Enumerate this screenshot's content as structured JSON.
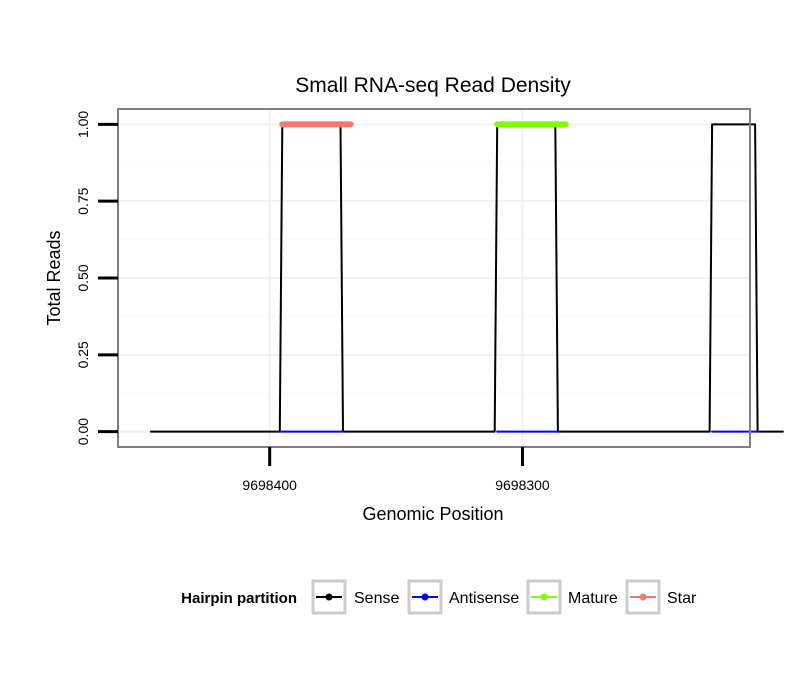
{
  "chart_data": {
    "type": "line",
    "title": "Small RNA-seq Read Density",
    "xlabel": "Genomic Position",
    "ylabel": "Total Reads",
    "x_reversed": true,
    "xlim": [
      9698460,
      9698210
    ],
    "ylim": [
      -0.05,
      1.05
    ],
    "y_ticks": [
      0.0,
      0.25,
      0.5,
      0.75,
      1.0
    ],
    "y_tick_labels": [
      "0.00",
      "0.25",
      "0.50",
      "0.75",
      "1.00"
    ],
    "x_ticks": [
      9698400,
      9698300
    ],
    "x_tick_labels": [
      "9698400",
      "9698300"
    ],
    "grid": true,
    "legend": {
      "title": "Hairpin partition",
      "position": "bottom",
      "entries": [
        "Sense",
        "Antisense",
        "Mature",
        "Star"
      ]
    },
    "series": [
      {
        "name": "Sense",
        "color": "#000000",
        "width": 2,
        "x": [
          9698447,
          9698396,
          9698395,
          9698372,
          9698371,
          9698311,
          9698310,
          9698287,
          9698286,
          9698226,
          9698225,
          9698208,
          9698207,
          9698197
        ],
        "y": [
          0,
          0,
          1,
          1,
          0,
          0,
          1,
          1,
          0,
          0,
          1,
          1,
          0,
          0
        ]
      },
      {
        "name": "Antisense",
        "color": "#0000ff",
        "width": 2,
        "x": [
          9698396,
          9698371,
          9698310,
          9698286,
          9698225,
          9698207
        ],
        "y": [
          0,
          0,
          0,
          0,
          0,
          0
        ],
        "segments": [
          [
            0,
            1
          ],
          [
            2,
            3
          ],
          [
            4,
            5
          ]
        ]
      },
      {
        "name": "Mature",
        "color": "#7fff00",
        "width": 6,
        "x": [
          9698310,
          9698283
        ],
        "y": [
          1,
          1
        ]
      },
      {
        "name": "Star",
        "color": "#f8766d",
        "width": 6,
        "x": [
          9698395,
          9698368
        ],
        "y": [
          1,
          1
        ]
      }
    ]
  },
  "colors": {
    "panel_border": "#7f7f7f",
    "grid_major": "#f2f2f2",
    "grid_minor": "#fafafa",
    "legend_key_border": "#cccccc",
    "axis_ticks": "#000000"
  }
}
